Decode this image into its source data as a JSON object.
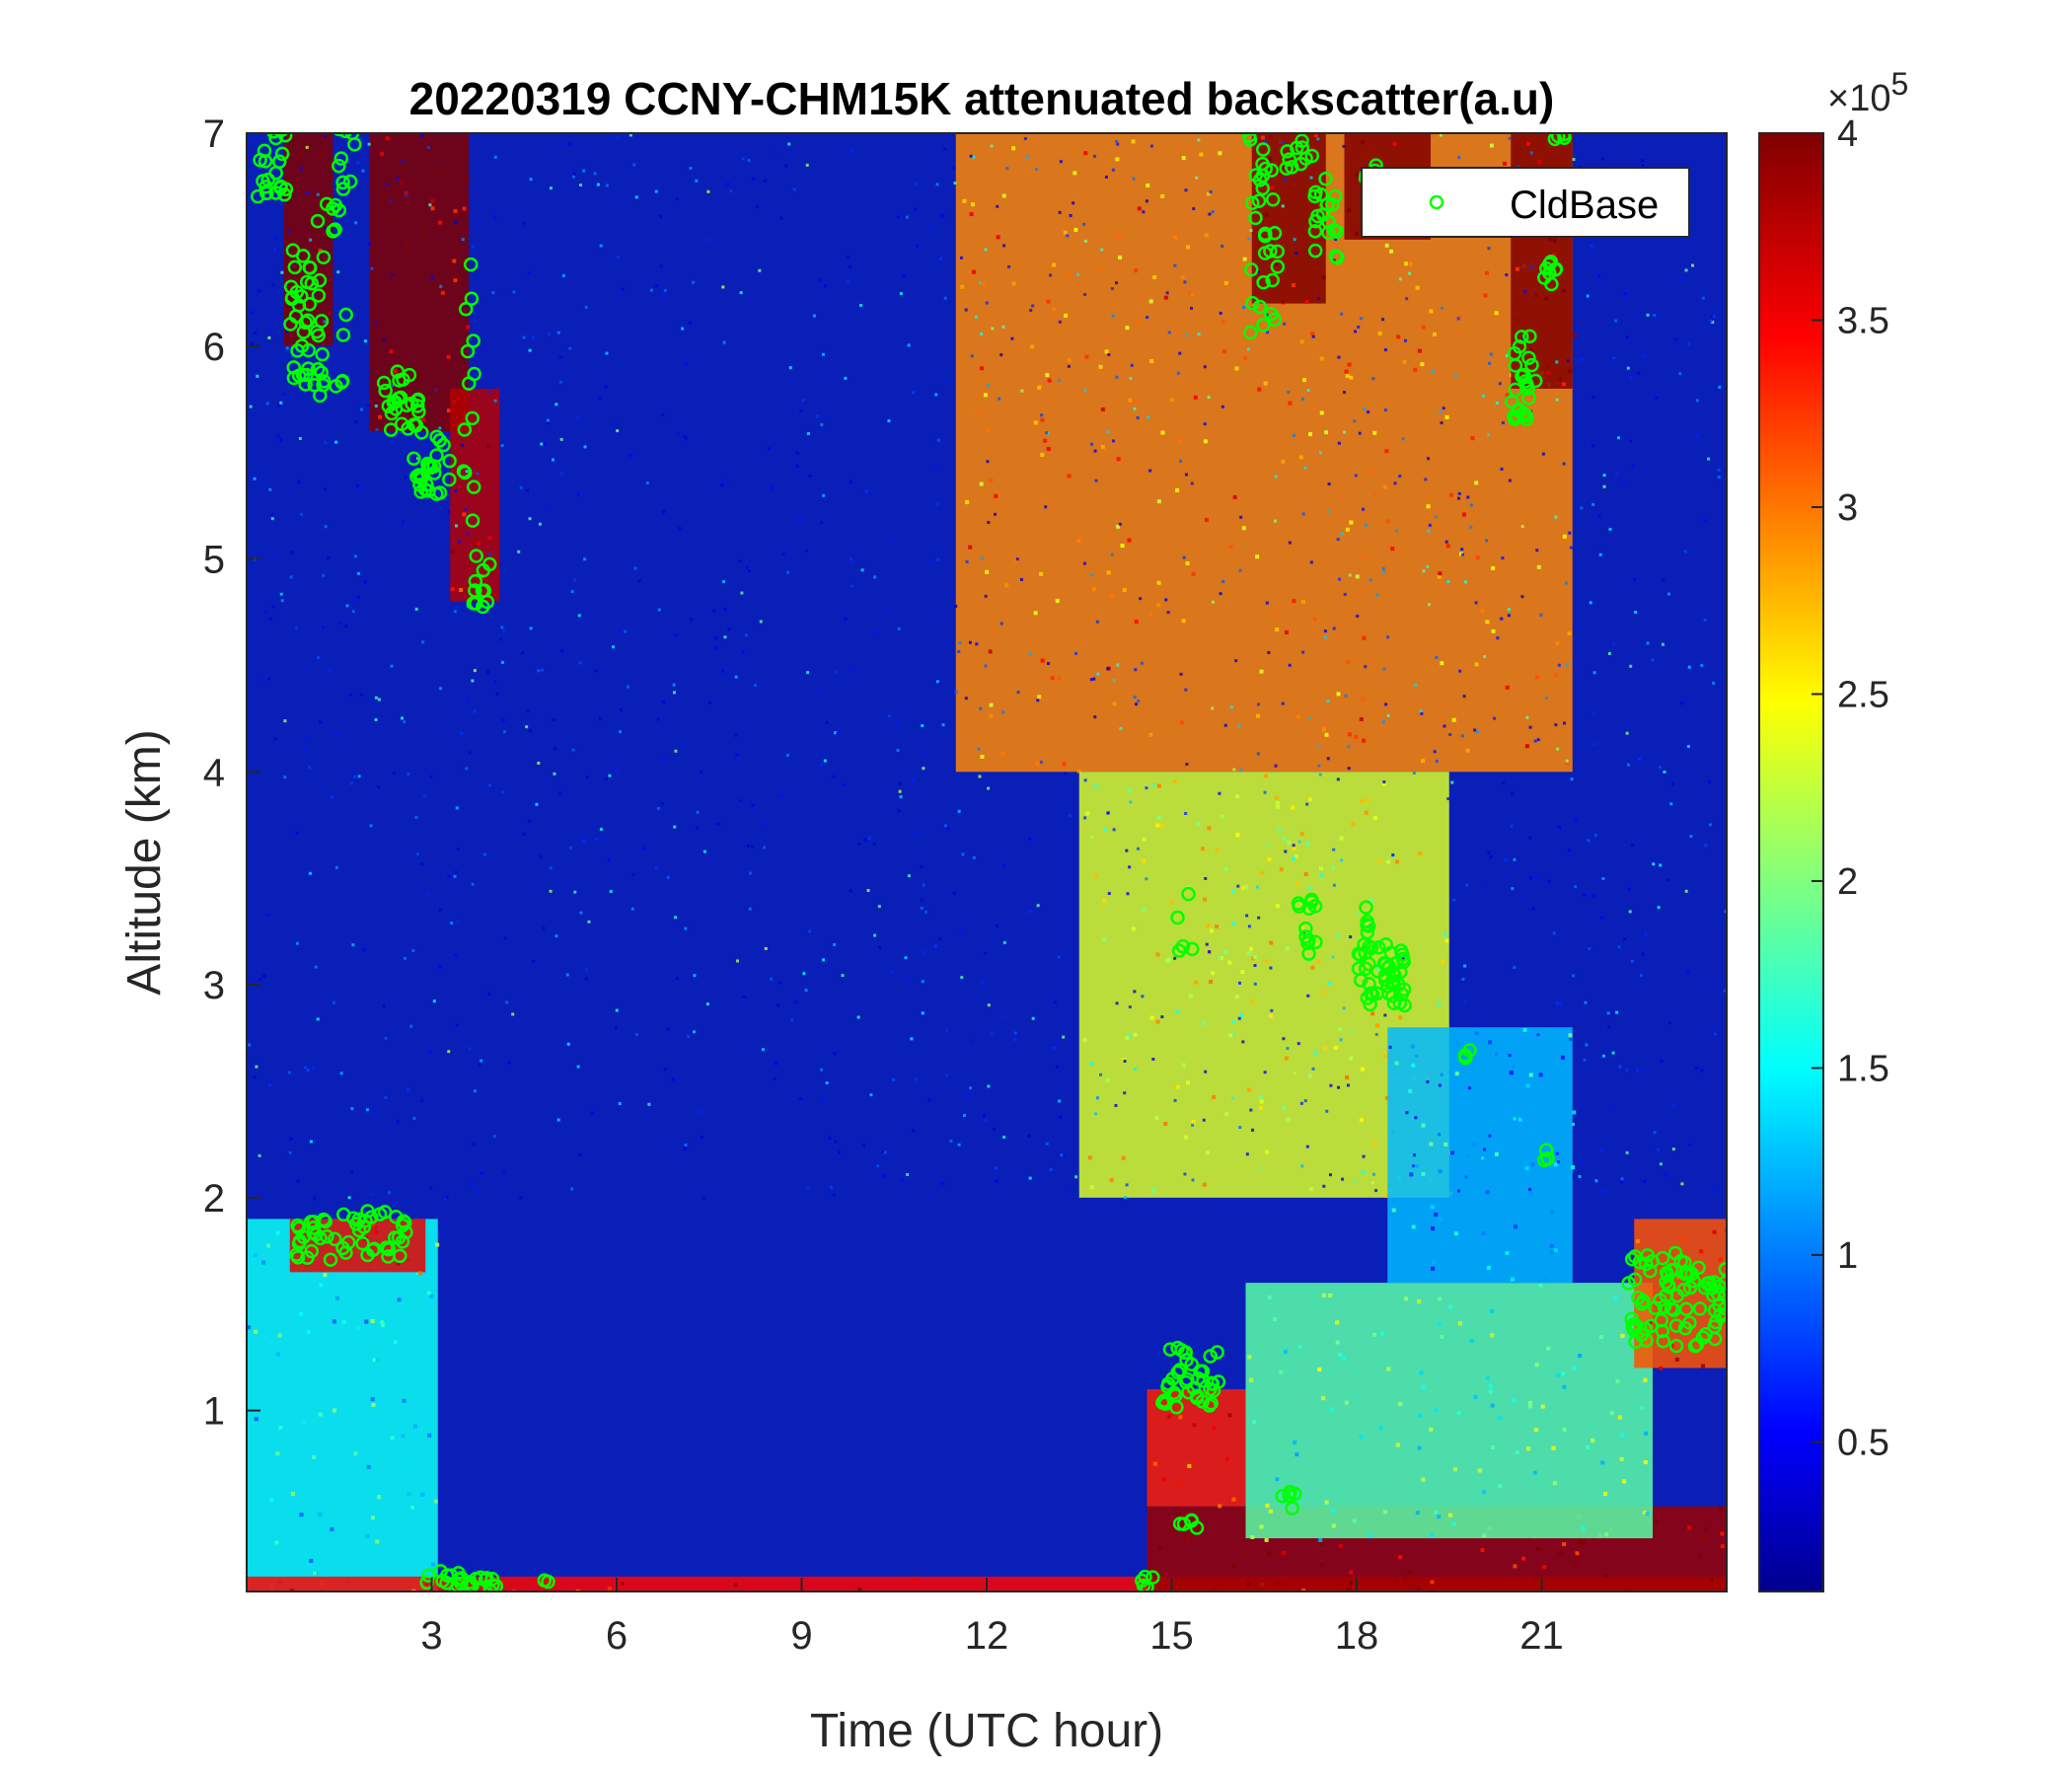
{
  "chart_data": {
    "type": "heatmap",
    "title": "20220319 CCNY-CHM15K attenuated backscatter(a.u)",
    "xlabel": "Time (UTC hour)",
    "ylabel": "Altitude (km)",
    "xlim": [
      0,
      24
    ],
    "ylim": [
      0.15,
      7
    ],
    "xticks": [
      3,
      6,
      9,
      12,
      15,
      18,
      21
    ],
    "xtick_labels": [
      "3",
      "6",
      "9",
      "12",
      "15",
      "18",
      "21"
    ],
    "yticks": [
      1,
      2,
      3,
      4,
      5,
      6,
      7
    ],
    "ytick_labels": [
      "1",
      "2",
      "3",
      "4",
      "5",
      "6",
      "7"
    ],
    "colorbar": {
      "colormap": "jet",
      "range": [
        0.1,
        4
      ],
      "ticks": [
        0.5,
        1,
        1.5,
        2,
        2.5,
        3,
        3.5,
        4
      ],
      "tick_labels": [
        "0.5",
        "1",
        "1.5",
        "2",
        "2.5",
        "3",
        "3.5",
        "4"
      ],
      "exponent_label": "×10",
      "exponent": "5"
    },
    "legend": {
      "entries": [
        "CldBase"
      ],
      "position": "top-right",
      "marker_color": "#00ff00"
    },
    "regions": [
      {
        "t0": 0,
        "t1": 3.1,
        "z0": 0.15,
        "z1": 1.9,
        "level": 1.6
      },
      {
        "t0": 0.7,
        "t1": 2.9,
        "z0": 1.65,
        "z1": 1.9,
        "level": 3.6
      },
      {
        "t0": 0.6,
        "t1": 1.4,
        "z0": 6.0,
        "z1": 7.0,
        "level": 4.0
      },
      {
        "t0": 2.0,
        "t1": 3.6,
        "z0": 5.6,
        "z1": 7.0,
        "level": 4.0
      },
      {
        "t0": 3.3,
        "t1": 4.1,
        "z0": 4.8,
        "z1": 5.8,
        "level": 3.8
      },
      {
        "t0": 0,
        "t1": 24,
        "z0": 0.15,
        "z1": 0.22,
        "level": 3.5
      },
      {
        "t0": 11.5,
        "t1": 21.5,
        "z0": 4.0,
        "z1": 7.0,
        "level": 3.0
      },
      {
        "t0": 13.5,
        "t1": 19.5,
        "z0": 2.0,
        "z1": 4.0,
        "level": 2.4
      },
      {
        "t0": 14.6,
        "t1": 24,
        "z0": 0.15,
        "z1": 0.55,
        "level": 3.9
      },
      {
        "t0": 14.6,
        "t1": 16.2,
        "z0": 0.55,
        "z1": 1.1,
        "level": 3.4
      },
      {
        "t0": 16.2,
        "t1": 22.8,
        "z0": 0.4,
        "z1": 1.6,
        "level": 1.9
      },
      {
        "t0": 18.5,
        "t1": 21.5,
        "z0": 1.6,
        "z1": 2.8,
        "level": 1.3
      },
      {
        "t0": 22.5,
        "t1": 24,
        "z0": 1.2,
        "z1": 1.9,
        "level": 3.2
      },
      {
        "t0": 16.3,
        "t1": 17.5,
        "z0": 6.2,
        "z1": 7.0,
        "level": 4.0
      },
      {
        "t0": 17.8,
        "t1": 19.2,
        "z0": 6.5,
        "z1": 7.0,
        "level": 4.0
      },
      {
        "t0": 20.5,
        "t1": 21.5,
        "z0": 5.8,
        "z1": 7.0,
        "level": 4.0
      }
    ],
    "cloud_base_clusters": [
      {
        "t": 0.35,
        "z": 6.9,
        "dt": 0.3,
        "dz": 0.2,
        "n": 25
      },
      {
        "t": 0.95,
        "z": 6.1,
        "dt": 0.3,
        "dz": 0.35,
        "n": 35
      },
      {
        "t": 1.4,
        "z": 6.3,
        "dt": 0.25,
        "dz": 0.5,
        "n": 20
      },
      {
        "t": 1.6,
        "z": 6.9,
        "dt": 0.15,
        "dz": 0.15,
        "n": 8
      },
      {
        "t": 2.5,
        "z": 5.75,
        "dt": 0.3,
        "dz": 0.15,
        "n": 25
      },
      {
        "t": 3.0,
        "z": 5.45,
        "dt": 0.3,
        "dz": 0.15,
        "n": 25
      },
      {
        "t": 3.6,
        "z": 5.8,
        "dt": 0.1,
        "dz": 0.6,
        "n": 12
      },
      {
        "t": 3.8,
        "z": 5.0,
        "dt": 0.15,
        "dz": 0.25,
        "n": 12
      },
      {
        "t": 1.7,
        "z": 1.82,
        "dt": 0.9,
        "dz": 0.12,
        "n": 50
      },
      {
        "t": 3.5,
        "z": 0.2,
        "dt": 0.6,
        "dz": 0.05,
        "n": 25
      },
      {
        "t": 4.8,
        "z": 0.2,
        "dt": 0.1,
        "dz": 0.03,
        "n": 2
      },
      {
        "t": 14.6,
        "z": 0.2,
        "dt": 0.1,
        "dz": 0.04,
        "n": 5
      },
      {
        "t": 15.3,
        "z": 1.15,
        "dt": 0.5,
        "dz": 0.15,
        "n": 40
      },
      {
        "t": 15.2,
        "z": 3.3,
        "dt": 0.2,
        "dz": 0.2,
        "n": 5
      },
      {
        "t": 16.5,
        "z": 6.5,
        "dt": 0.25,
        "dz": 0.5,
        "n": 30
      },
      {
        "t": 17.0,
        "z": 6.9,
        "dt": 0.3,
        "dz": 0.1,
        "n": 10
      },
      {
        "t": 17.6,
        "z": 6.6,
        "dt": 0.3,
        "dz": 0.2,
        "n": 18
      },
      {
        "t": 18.3,
        "z": 6.8,
        "dt": 0.2,
        "dz": 0.1,
        "n": 8
      },
      {
        "t": 17.2,
        "z": 3.25,
        "dt": 0.15,
        "dz": 0.15,
        "n": 12
      },
      {
        "t": 18.2,
        "z": 3.3,
        "dt": 0.05,
        "dz": 0.1,
        "n": 5
      },
      {
        "t": 18.4,
        "z": 3.05,
        "dt": 0.4,
        "dz": 0.15,
        "n": 45
      },
      {
        "t": 19.8,
        "z": 2.65,
        "dt": 0.05,
        "dz": 0.05,
        "n": 3
      },
      {
        "t": 21.0,
        "z": 2.2,
        "dt": 0.1,
        "dz": 0.03,
        "n": 3
      },
      {
        "t": 20.7,
        "z": 5.85,
        "dt": 0.2,
        "dz": 0.2,
        "n": 25
      },
      {
        "t": 21.1,
        "z": 6.45,
        "dt": 0.15,
        "dz": 0.25,
        "n": 12
      },
      {
        "t": 21.3,
        "z": 6.98,
        "dt": 0.1,
        "dz": 0.02,
        "n": 4
      },
      {
        "t": 23.2,
        "z": 1.52,
        "dt": 0.8,
        "dz": 0.22,
        "n": 80
      },
      {
        "t": 16.9,
        "z": 0.58,
        "dt": 0.15,
        "dz": 0.04,
        "n": 5
      },
      {
        "t": 15.3,
        "z": 0.47,
        "dt": 0.4,
        "dz": 0.03,
        "n": 5
      }
    ]
  }
}
